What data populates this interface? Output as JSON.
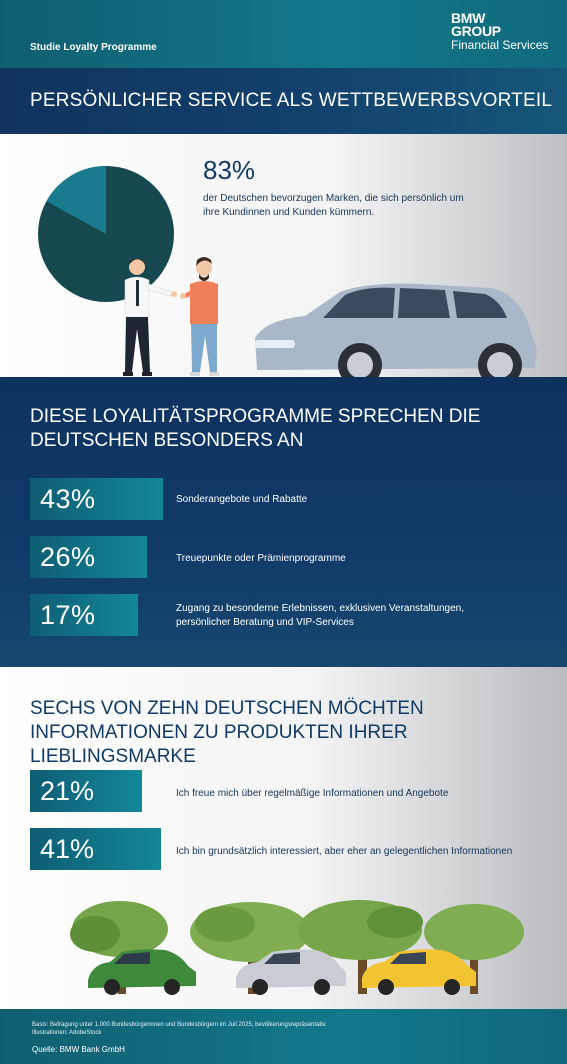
{
  "header": {
    "program_label": "Studie Loyalty Programme",
    "brand_line1": "BMW",
    "brand_line2": "GROUP",
    "brand_line3": "Financial Services"
  },
  "section1": {
    "title": "PERSÖNLICHER SERVICE ALS WETTBEWERBSVORTEIL",
    "stat_value": "83%",
    "stat_text": "der Deutschen bevorzugen Marken, die sich persönlich um ihre Kundinnen und Kunden kümmern.",
    "pie_fraction": 0.83
  },
  "section2": {
    "title": "DIESE LOYALITÄTSPROGRAMME SPRECHEN DIE DEUTSCHEN BESONDERS AN",
    "items": [
      {
        "value": "43%",
        "label": "Sonderangebote und Rabatte"
      },
      {
        "value": "26%",
        "label": "Treuepunkte oder Prämienprogramme"
      },
      {
        "value": "17%",
        "label": "Zugang zu besonderne Erlebnissen, exklusiven Veranstaltungen, persönlicher Beratung und VIP-Services"
      }
    ]
  },
  "section3": {
    "title": "SECHS VON ZEHN DEUTSCHEN MÖCHTEN INFORMATIONEN ZU PRODUKTEN IHRER LIEBLINGSMARKE",
    "items": [
      {
        "value": "21%",
        "label": "Ich freue mich über regelmäßige Informationen und Angebote"
      },
      {
        "value": "41%",
        "label": "Ich bin grundsätzlich interessiert, aber eher an gelegentlichen Informationen"
      }
    ]
  },
  "footer": {
    "basis": "Basis: Befragung unter 1.000 Bundesbürgerinnen und Bundesbürgern im Juli 2025, bevölkerungsrepräsentativ.",
    "illustrations": "Illustrationen: AdobeStock",
    "source": "Quelle: BMW Bank GmbH"
  },
  "colors": {
    "navy": "#10345e",
    "teal": "#128897",
    "pie_dark": "#15484f",
    "pie_light": "#1a7a8e"
  }
}
